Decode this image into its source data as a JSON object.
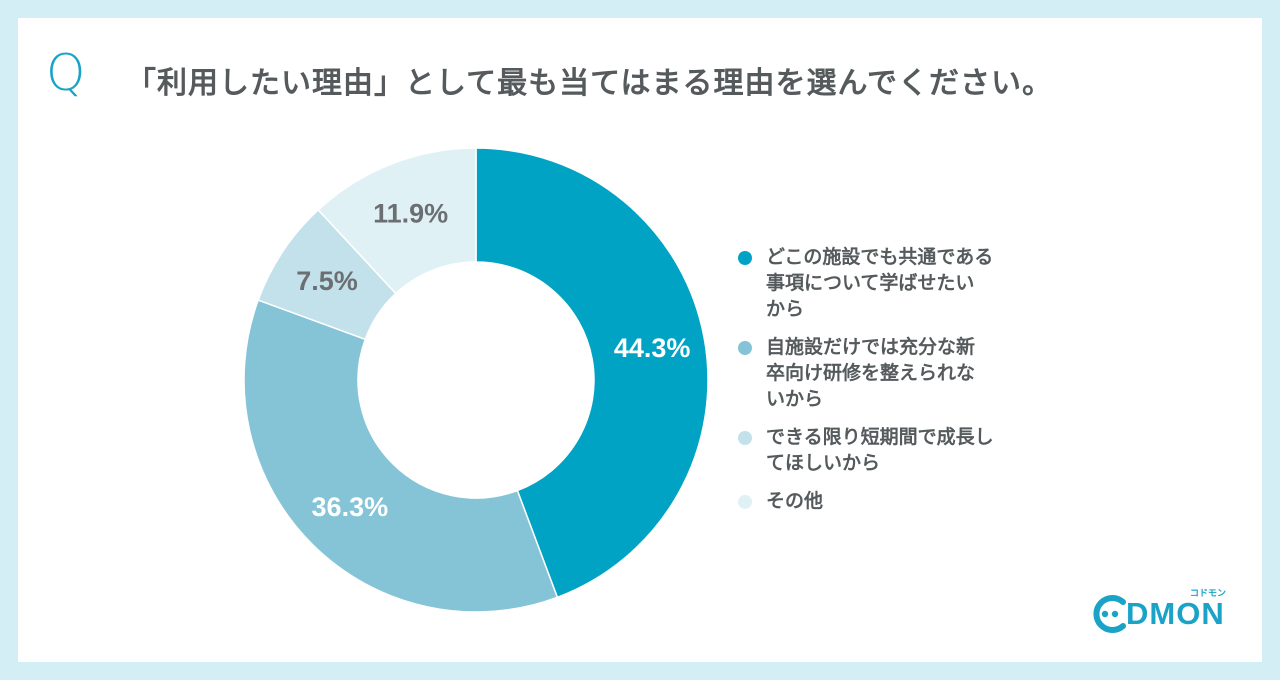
{
  "question": {
    "mark": "Q",
    "text": "「利用したい理由」として最も当てはまる理由を選んでください。"
  },
  "colors": {
    "background": "#d4eef6",
    "accent": "#1aa3c6",
    "text": "#555a5c"
  },
  "chart_data": {
    "type": "pie",
    "donut": true,
    "categories": [
      "どこの施設でも共通である事項について学ばせたいから",
      "自施設だけでは充分な新卒向け研修を整えられないから",
      "できる限り短期間で成長してほしいから",
      "その他"
    ],
    "values": [
      44.3,
      36.3,
      7.5,
      11.9
    ],
    "labels": [
      "44.3%",
      "36.3%",
      "7.5%",
      "11.9%"
    ],
    "colors": [
      "#00a3c3",
      "#84c4d6",
      "#c2e1ea",
      "#e0f1f6"
    ],
    "label_colors": [
      "#ffffff",
      "#ffffff",
      "#6b6f71",
      "#6b6f71"
    ],
    "legend_placement": "right"
  },
  "legend": {
    "items": [
      {
        "label": "どこの施設でも共通である\n事項について学ばせたい\nから",
        "color": "#00a3c3"
      },
      {
        "label": "自施設だけでは充分な新\n卒向け研修を整えられな\nいから",
        "color": "#84c4d6"
      },
      {
        "label": "できる限り短期間で成長し\nてほしいから",
        "color": "#c2e1ea"
      },
      {
        "label": "その他",
        "color": "#e0f1f6"
      }
    ]
  },
  "logo": {
    "text": "DMON",
    "sub": "コドモン"
  }
}
